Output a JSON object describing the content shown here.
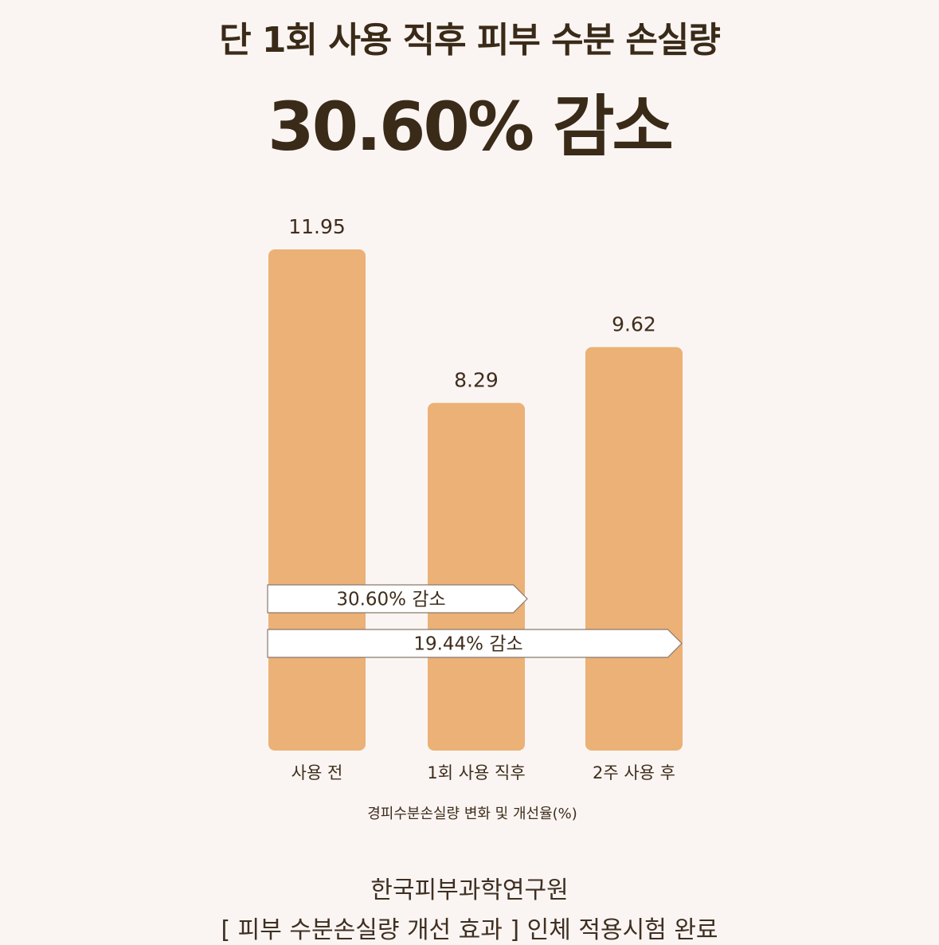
{
  "headline": {
    "line1": "단 1회 사용 직후 피부 수분 손실량",
    "line2": "30.60% 감소"
  },
  "chart_data": {
    "type": "bar",
    "categories": [
      "사용 전",
      "1회 사용 직후",
      "2주 사용 후"
    ],
    "values": [
      11.95,
      8.29,
      9.62
    ],
    "value_labels": [
      "11.95",
      "8.29",
      "9.62"
    ],
    "xlabel": "경피수분손실량 변화 및 개선율(%)",
    "ylabel": "",
    "ylim": [
      0,
      11.95
    ],
    "grid": false,
    "annotations": [
      {
        "text": "30.60% 감소",
        "from": "사용 전",
        "to": "1회 사용 직후"
      },
      {
        "text": "19.44% 감소",
        "from": "사용 전",
        "to": "2주 사용 후"
      }
    ],
    "colors": {
      "bar": "#ebb176",
      "arrow_fill": "#ffffff",
      "arrow_stroke": "#8a7a6e",
      "text": "#3f2d1c"
    }
  },
  "footer": {
    "line1": "한국피부과학연구원",
    "line2": "[ 피부 수분손실량 개선 효과 ] 인체 적용시험 완료"
  }
}
